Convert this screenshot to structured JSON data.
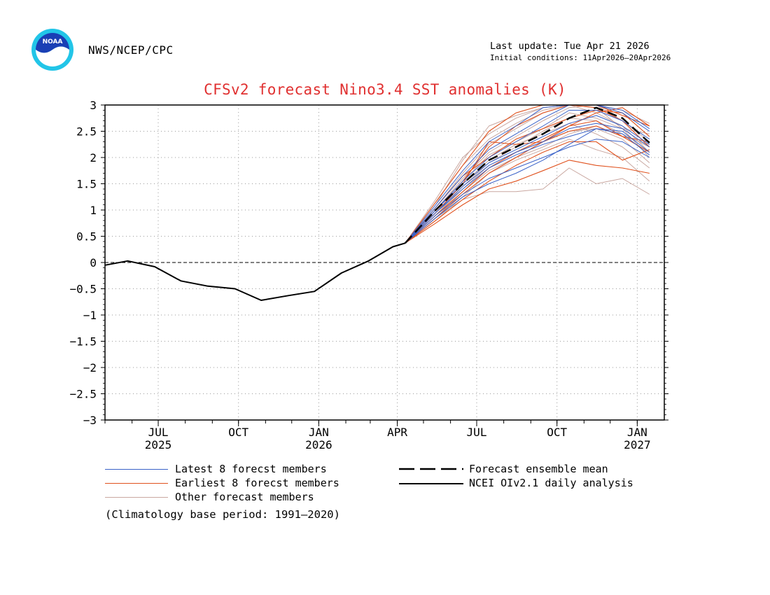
{
  "header": {
    "agency": "NWS/NCEP/CPC",
    "last_update": "Last update: Tue Apr 21 2026",
    "initial_conditions": "Initial conditions: 11Apr2026—20Apr2026",
    "logo_text": "NOAA"
  },
  "colors": {
    "title": "#e03030",
    "latest_members": "#3a62c8",
    "earliest_members": "#e0521e",
    "other_members": "#c9a7a0",
    "analysis": "#000000"
  },
  "chart_data": {
    "type": "line",
    "title": "CFSv2 forecast Nino3.4 SST anomalies (K)",
    "ylim": [
      -3,
      3
    ],
    "y_ticks": [
      "3",
      "2.5",
      "2",
      "1.5",
      "1",
      "0.5",
      "0",
      "−0.5",
      "−1",
      "−1.5",
      "−2",
      "−2.5",
      "−3"
    ],
    "x_ticks": [
      {
        "month": "JUL",
        "year": "2025"
      },
      {
        "month": "OCT",
        "year": ""
      },
      {
        "month": "JAN",
        "year": "2026"
      },
      {
        "month": "APR",
        "year": ""
      },
      {
        "month": "JUL",
        "year": ""
      },
      {
        "month": "OCT",
        "year": ""
      },
      {
        "month": "JAN",
        "year": "2027"
      }
    ],
    "grid": true,
    "legend_position": "bottom",
    "analysis": {
      "name": "NCEI OIv2.1 daily analysis",
      "x": [
        "2025-05-01",
        "2025-05-27",
        "2025-06-27",
        "2025-07-27",
        "2025-08-27",
        "2025-09-27",
        "2025-10-27",
        "2025-11-27",
        "2025-12-27",
        "2026-01-27",
        "2026-02-27",
        "2026-03-27",
        "2026-04-10"
      ],
      "y": [
        -0.05,
        0.03,
        -0.08,
        -0.35,
        -0.45,
        -0.5,
        -0.72,
        -0.63,
        -0.55,
        -0.2,
        0.03,
        0.3,
        0.37
      ]
    },
    "ensemble_mean": {
      "name": "Forecast ensemble mean",
      "x": [
        "2026-04-10",
        "2026-05-15",
        "2026-06-15",
        "2026-07-15",
        "2026-08-15",
        "2026-09-15",
        "2026-10-15",
        "2026-11-15",
        "2026-12-15",
        "2027-01-15"
      ],
      "y": [
        0.37,
        1.0,
        1.5,
        1.95,
        2.2,
        2.45,
        2.75,
        2.95,
        2.75,
        2.28
      ]
    },
    "member_months": [
      "2026-04-10",
      "2026-05-15",
      "2026-06-15",
      "2026-07-15",
      "2026-08-15",
      "2026-09-15",
      "2026-10-15",
      "2026-11-15",
      "2026-12-15",
      "2027-01-15"
    ],
    "latest_members": {
      "name": "Latest 8 forecst members",
      "members": [
        [
          0.37,
          1.0,
          1.55,
          2.0,
          2.3,
          2.6,
          2.9,
          2.9,
          2.7,
          2.35
        ],
        [
          0.37,
          0.95,
          1.4,
          1.8,
          2.05,
          2.25,
          2.4,
          2.55,
          2.5,
          2.1
        ],
        [
          0.37,
          1.05,
          1.65,
          2.15,
          2.45,
          2.75,
          3.0,
          3.0,
          2.85,
          2.5
        ],
        [
          0.37,
          0.9,
          1.3,
          1.6,
          1.8,
          2.0,
          2.2,
          2.35,
          2.3,
          2.0
        ],
        [
          0.37,
          1.0,
          1.5,
          1.9,
          2.15,
          2.4,
          2.65,
          2.8,
          2.6,
          2.25
        ],
        [
          0.37,
          1.1,
          1.75,
          2.3,
          2.6,
          2.95,
          3.0,
          3.0,
          2.9,
          2.55
        ],
        [
          0.37,
          0.95,
          1.45,
          1.85,
          2.1,
          2.3,
          2.55,
          2.65,
          2.55,
          2.2
        ],
        [
          0.37,
          0.85,
          1.25,
          1.5,
          1.7,
          1.95,
          2.25,
          2.55,
          2.45,
          2.05
        ]
      ]
    },
    "earliest_members": {
      "name": "Earliest 8 forecst members",
      "members": [
        [
          0.37,
          1.15,
          1.85,
          2.5,
          2.85,
          3.0,
          3.0,
          3.0,
          2.8,
          2.6
        ],
        [
          0.37,
          0.9,
          1.35,
          1.8,
          2.1,
          2.35,
          2.6,
          2.7,
          2.4,
          2.1
        ],
        [
          0.37,
          0.8,
          1.2,
          1.55,
          1.85,
          2.1,
          2.3,
          2.3,
          1.95,
          2.15
        ],
        [
          0.37,
          1.0,
          1.55,
          2.2,
          2.6,
          2.85,
          3.0,
          2.95,
          2.7,
          2.2
        ],
        [
          0.37,
          0.95,
          1.5,
          2.3,
          2.25,
          2.3,
          2.5,
          2.6,
          2.4,
          2.3
        ],
        [
          0.37,
          0.75,
          1.1,
          1.4,
          1.55,
          1.75,
          1.95,
          1.85,
          1.8,
          1.7
        ],
        [
          0.37,
          1.05,
          1.65,
          2.0,
          2.35,
          2.55,
          2.75,
          2.9,
          2.85,
          2.4
        ],
        [
          0.37,
          0.85,
          1.3,
          1.7,
          2.0,
          2.3,
          2.6,
          2.85,
          2.95,
          2.6
        ]
      ]
    },
    "other_members": {
      "name": "Other forecast members",
      "members": [
        [
          0.37,
          1.1,
          1.95,
          2.6,
          2.8,
          2.95,
          3.0,
          3.0,
          2.85,
          2.4
        ],
        [
          0.37,
          0.85,
          1.2,
          1.35,
          1.35,
          1.4,
          1.8,
          1.5,
          1.6,
          1.3
        ],
        [
          0.37,
          1.2,
          2.0,
          2.45,
          2.75,
          2.95,
          3.0,
          3.0,
          2.9,
          2.65
        ],
        [
          0.37,
          0.9,
          1.4,
          1.85,
          2.1,
          2.3,
          2.5,
          2.55,
          2.35,
          1.9
        ],
        [
          0.37,
          1.0,
          1.6,
          2.1,
          2.4,
          2.7,
          2.95,
          3.0,
          2.7,
          2.3
        ],
        [
          0.37,
          0.95,
          1.5,
          1.95,
          2.25,
          2.45,
          2.65,
          2.45,
          2.2,
          1.8
        ],
        [
          0.37,
          1.05,
          1.7,
          2.25,
          2.55,
          2.85,
          3.0,
          2.85,
          2.6,
          2.1
        ],
        [
          0.37,
          0.8,
          1.25,
          1.7,
          1.95,
          2.15,
          2.35,
          2.15,
          2.0,
          1.55
        ],
        [
          0.37,
          1.15,
          1.85,
          2.35,
          2.65,
          2.9,
          3.0,
          2.95,
          2.55,
          2.45
        ],
        [
          0.37,
          0.9,
          1.45,
          1.9,
          2.2,
          2.5,
          2.75,
          2.7,
          2.45,
          2.2
        ],
        [
          0.37,
          1.0,
          1.55,
          2.05,
          2.3,
          2.55,
          2.85,
          2.75,
          2.55,
          2.0
        ],
        [
          0.37,
          0.85,
          1.35,
          1.75,
          2.0,
          2.2,
          2.45,
          2.6,
          2.4,
          2.25
        ]
      ]
    },
    "legend": [
      {
        "label": "Latest 8 forecst members",
        "style": "latest"
      },
      {
        "label": "Earliest 8 forecst members",
        "style": "earliest"
      },
      {
        "label": "Other forecast members",
        "style": "other"
      },
      {
        "label": "Forecast ensemble mean",
        "style": "mean"
      },
      {
        "label": "NCEI OIv2.1 daily analysis",
        "style": "analysis"
      }
    ],
    "footnote": "(Climatology base period: 1991—2020)"
  }
}
